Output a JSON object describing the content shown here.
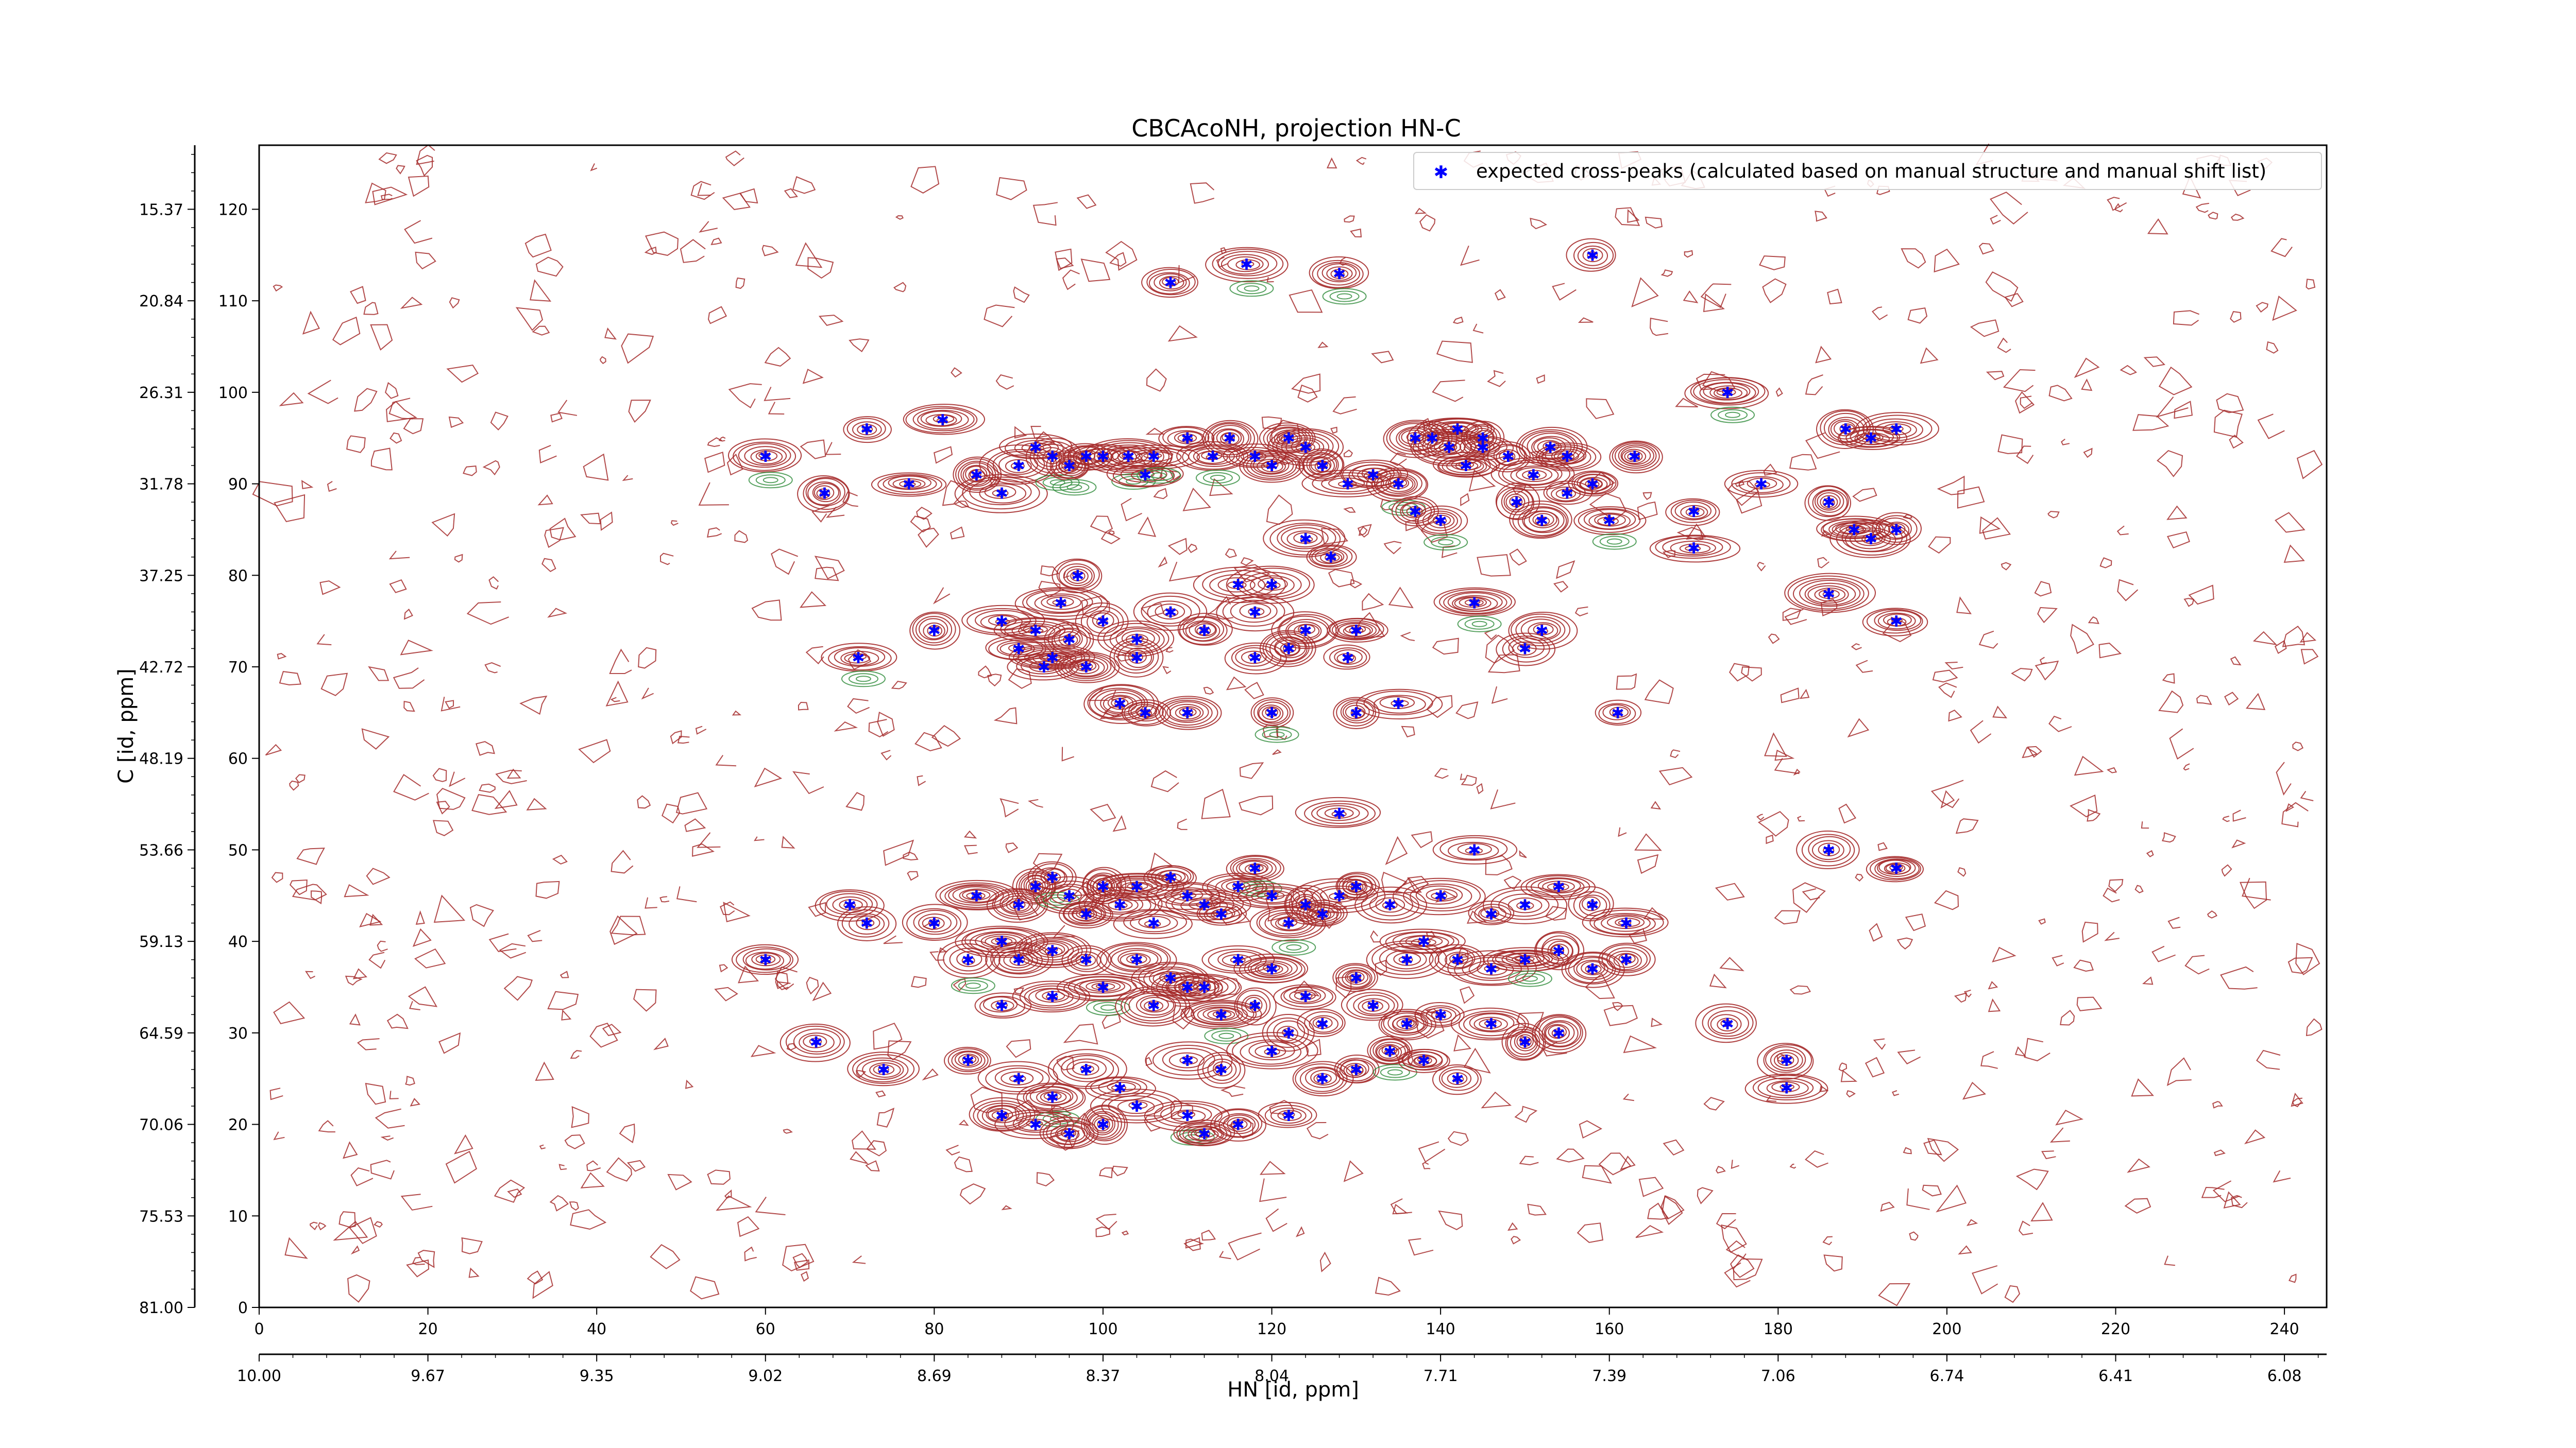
{
  "chart_data": {
    "type": "scatter",
    "title": "CBCAcoNH, projection HN-C",
    "xlabel": "HN [id, ppm]",
    "ylabel": "C [id, ppm]",
    "legend": {
      "label": "expected cross-peaks (calculated based on manual structure and manual shift list)",
      "placement": "top-right"
    },
    "grid": false,
    "colors": {
      "marker": "#0000ff",
      "contour_positive": "#a52a2a",
      "contour_negative": "#2e8b3a"
    },
    "x_index_range": [
      0,
      245
    ],
    "y_index_range": [
      0,
      127
    ],
    "x_index_ticks": [
      0,
      20,
      40,
      60,
      80,
      100,
      120,
      140,
      160,
      180,
      200,
      220,
      240
    ],
    "y_index_ticks": [
      0,
      10,
      20,
      30,
      40,
      50,
      60,
      70,
      80,
      90,
      100,
      110,
      120
    ],
    "x_ppm_ticks": [
      "10.00",
      "9.67",
      "9.35",
      "9.02",
      "8.69",
      "8.37",
      "8.04",
      "7.71",
      "7.39",
      "7.06",
      "6.74",
      "6.41",
      "6.08"
    ],
    "y_ppm_ticks": [
      "81.00",
      "75.53",
      "70.06",
      "64.59",
      "59.13",
      "53.66",
      "48.19",
      "42.72",
      "37.25",
      "31.78",
      "26.31",
      "20.84",
      "15.37"
    ],
    "series": [
      {
        "name": "expected cross-peaks (calculated based on manual structure and manual shift list)",
        "points": [
          [
            108,
            112
          ],
          [
            117,
            114
          ],
          [
            128,
            113
          ],
          [
            158,
            115
          ],
          [
            174,
            100
          ],
          [
            60,
            93
          ],
          [
            72,
            96
          ],
          [
            81,
            97
          ],
          [
            67,
            89
          ],
          [
            77,
            90
          ],
          [
            85,
            91
          ],
          [
            88,
            89
          ],
          [
            90,
            92
          ],
          [
            92,
            94
          ],
          [
            94,
            93
          ],
          [
            96,
            92
          ],
          [
            98,
            93
          ],
          [
            100,
            93
          ],
          [
            103,
            93
          ],
          [
            105,
            91
          ],
          [
            106,
            93
          ],
          [
            110,
            95
          ],
          [
            113,
            93
          ],
          [
            115,
            95
          ],
          [
            118,
            93
          ],
          [
            120,
            92
          ],
          [
            122,
            95
          ],
          [
            124,
            94
          ],
          [
            126,
            92
          ],
          [
            129,
            90
          ],
          [
            132,
            91
          ],
          [
            135,
            90
          ],
          [
            137,
            95
          ],
          [
            139,
            95
          ],
          [
            141,
            94
          ],
          [
            143,
            92
          ],
          [
            145,
            94
          ],
          [
            148,
            93
          ],
          [
            151,
            91
          ],
          [
            153,
            94
          ],
          [
            155,
            93
          ],
          [
            158,
            90
          ],
          [
            160,
            86
          ],
          [
            163,
            93
          ],
          [
            170,
            87
          ],
          [
            178,
            90
          ],
          [
            186,
            88
          ],
          [
            189,
            85
          ],
          [
            191,
            84
          ],
          [
            194,
            85
          ],
          [
            188,
            96
          ],
          [
            191,
            95
          ],
          [
            194,
            96
          ],
          [
            142,
            96
          ],
          [
            145,
            95
          ],
          [
            149,
            88
          ],
          [
            152,
            86
          ],
          [
            155,
            89
          ],
          [
            137,
            87
          ],
          [
            140,
            86
          ],
          [
            124,
            84
          ],
          [
            127,
            82
          ],
          [
            170,
            83
          ],
          [
            144,
            77
          ],
          [
            152,
            74
          ],
          [
            150,
            72
          ],
          [
            186,
            78
          ],
          [
            194,
            75
          ],
          [
            71,
            71
          ],
          [
            80,
            74
          ],
          [
            88,
            75
          ],
          [
            92,
            74
          ],
          [
            96,
            73
          ],
          [
            100,
            75
          ],
          [
            104,
            73
          ],
          [
            108,
            76
          ],
          [
            112,
            74
          ],
          [
            118,
            76
          ],
          [
            124,
            74
          ],
          [
            130,
            74
          ],
          [
            90,
            72
          ],
          [
            94,
            71
          ],
          [
            98,
            70
          ],
          [
            104,
            71
          ],
          [
            118,
            71
          ],
          [
            122,
            72
          ],
          [
            129,
            71
          ],
          [
            93,
            70
          ],
          [
            95,
            77
          ],
          [
            97,
            80
          ],
          [
            116,
            79
          ],
          [
            120,
            79
          ],
          [
            102,
            66
          ],
          [
            105,
            65
          ],
          [
            110,
            65
          ],
          [
            120,
            65
          ],
          [
            130,
            65
          ],
          [
            135,
            66
          ],
          [
            161,
            65
          ],
          [
            128,
            54
          ],
          [
            144,
            50
          ],
          [
            186,
            50
          ],
          [
            194,
            48
          ],
          [
            70,
            44
          ],
          [
            72,
            42
          ],
          [
            80,
            42
          ],
          [
            85,
            45
          ],
          [
            90,
            44
          ],
          [
            92,
            46
          ],
          [
            94,
            47
          ],
          [
            96,
            45
          ],
          [
            98,
            43
          ],
          [
            100,
            46
          ],
          [
            102,
            44
          ],
          [
            104,
            46
          ],
          [
            106,
            42
          ],
          [
            108,
            47
          ],
          [
            110,
            45
          ],
          [
            112,
            44
          ],
          [
            114,
            43
          ],
          [
            116,
            46
          ],
          [
            118,
            48
          ],
          [
            120,
            45
          ],
          [
            122,
            42
          ],
          [
            124,
            44
          ],
          [
            126,
            43
          ],
          [
            128,
            45
          ],
          [
            130,
            46
          ],
          [
            134,
            44
          ],
          [
            140,
            45
          ],
          [
            146,
            43
          ],
          [
            150,
            44
          ],
          [
            154,
            46
          ],
          [
            158,
            44
          ],
          [
            162,
            42
          ],
          [
            60,
            38
          ],
          [
            84,
            38
          ],
          [
            88,
            40
          ],
          [
            90,
            38
          ],
          [
            94,
            39
          ],
          [
            98,
            38
          ],
          [
            104,
            38
          ],
          [
            108,
            36
          ],
          [
            112,
            35
          ],
          [
            116,
            38
          ],
          [
            120,
            37
          ],
          [
            124,
            34
          ],
          [
            130,
            36
          ],
          [
            136,
            38
          ],
          [
            138,
            40
          ],
          [
            142,
            38
          ],
          [
            146,
            37
          ],
          [
            150,
            38
          ],
          [
            154,
            39
          ],
          [
            158,
            37
          ],
          [
            162,
            38
          ],
          [
            88,
            33
          ],
          [
            94,
            34
          ],
          [
            100,
            35
          ],
          [
            106,
            33
          ],
          [
            110,
            35
          ],
          [
            114,
            32
          ],
          [
            118,
            33
          ],
          [
            122,
            30
          ],
          [
            126,
            31
          ],
          [
            132,
            33
          ],
          [
            136,
            31
          ],
          [
            140,
            32
          ],
          [
            146,
            31
          ],
          [
            150,
            29
          ],
          [
            154,
            30
          ],
          [
            66,
            29
          ],
          [
            74,
            26
          ],
          [
            84,
            27
          ],
          [
            90,
            25
          ],
          [
            94,
            23
          ],
          [
            98,
            26
          ],
          [
            102,
            24
          ],
          [
            110,
            27
          ],
          [
            114,
            26
          ],
          [
            120,
            28
          ],
          [
            126,
            25
          ],
          [
            130,
            26
          ],
          [
            134,
            28
          ],
          [
            138,
            27
          ],
          [
            142,
            25
          ],
          [
            174,
            31
          ],
          [
            181,
            27
          ],
          [
            181,
            24
          ],
          [
            92,
            20
          ],
          [
            100,
            20
          ],
          [
            104,
            22
          ],
          [
            110,
            21
          ],
          [
            116,
            20
          ],
          [
            122,
            21
          ],
          [
            88,
            21
          ],
          [
            96,
            19
          ],
          [
            112,
            19
          ]
        ]
      }
    ]
  }
}
